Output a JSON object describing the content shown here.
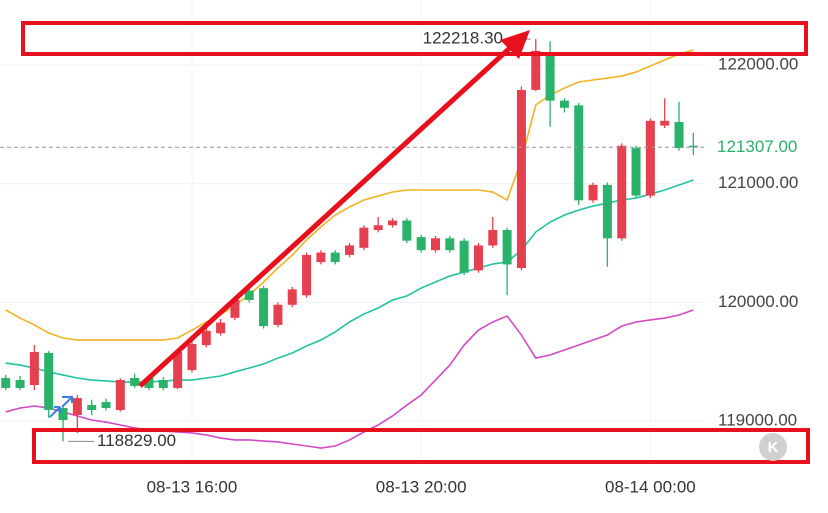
{
  "chart_data": {
    "type": "candlestick",
    "x": [
      -13,
      -12,
      -11,
      -10,
      -9,
      -8,
      -7,
      -6,
      -5,
      -4,
      -3,
      -2,
      -1,
      0,
      1,
      2,
      3,
      4,
      5,
      6,
      7,
      8,
      9,
      10,
      11,
      12,
      13,
      14,
      15,
      16,
      17,
      18,
      19,
      20,
      21,
      22,
      23,
      24,
      25,
      26,
      27,
      28,
      29,
      30,
      31,
      32,
      33,
      34,
      35
    ],
    "open": [
      119363,
      119346,
      119304,
      119574,
      119110,
      119051,
      119135,
      119160,
      119093,
      119363,
      119363,
      119346,
      119279,
      119430,
      119640,
      119740,
      119870,
      120100,
      120120,
      119810,
      119980,
      120060,
      120340,
      120420,
      120400,
      120460,
      120610,
      120650,
      120690,
      120550,
      120440,
      120540,
      120520,
      120270,
      120480,
      120610,
      120290,
      121790,
      122080,
      121700,
      121660,
      120860,
      120990,
      120540,
      121300,
      120900,
      121490,
      121520,
      121320
    ],
    "high": [
      119390,
      119380,
      119641,
      119590,
      119130,
      119220,
      119180,
      119190,
      119360,
      119400,
      119380,
      119370,
      119600,
      119700,
      119800,
      119860,
      120050,
      120130,
      120140,
      120000,
      120130,
      120420,
      120440,
      120440,
      120500,
      120650,
      120720,
      120710,
      120710,
      120570,
      120560,
      120560,
      120540,
      120500,
      120720,
      120630,
      121820,
      122218.3,
      122200,
      121720,
      121680,
      121010,
      121010,
      121340,
      121320,
      121550,
      121720,
      121690,
      121430
    ],
    "low": [
      119260,
      119260,
      119262,
      119026,
      118829,
      118900,
      119050,
      119090,
      119080,
      119280,
      119260,
      119260,
      119270,
      119410,
      119620,
      119720,
      119850,
      120000,
      119780,
      119790,
      119960,
      120040,
      120320,
      120320,
      120380,
      120440,
      120590,
      120630,
      120500,
      120420,
      120420,
      120420,
      120230,
      120250,
      120460,
      120060,
      120270,
      121780,
      121480,
      121600,
      120820,
      120840,
      120300,
      120520,
      120880,
      120880,
      121470,
      121280,
      121240
    ],
    "close": [
      119279,
      119279,
      119582,
      119094,
      119009,
      119194,
      119093,
      119110,
      119346,
      119296,
      119279,
      119279,
      119582,
      119650,
      119760,
      119830,
      120020,
      120020,
      119800,
      119980,
      120110,
      120400,
      120420,
      120340,
      120480,
      120630,
      120650,
      120690,
      120520,
      120440,
      120540,
      120440,
      120250,
      120480,
      120610,
      120320,
      121790,
      122120,
      121700,
      121640,
      120860,
      120990,
      120540,
      121320,
      120900,
      121530,
      121530,
      121300,
      121307
    ],
    "up_color": "#e5404f",
    "down_color": "#2bb26a",
    "series": [
      {
        "color": "#f0b323",
        "values": [
          119936,
          119868,
          119810,
          119742,
          119700,
          119683,
          119683,
          119683,
          119683,
          119683,
          119683,
          119683,
          119700,
          119767,
          119835,
          119894,
          119978,
          120062,
          120172,
          120290,
          120399,
          120526,
          120635,
          120736,
          120804,
          120863,
          120896,
          120930,
          120947,
          120947,
          120947,
          120947,
          120947,
          120947,
          120930,
          120863,
          121200,
          121663,
          121747,
          121806,
          121857,
          121874,
          121890,
          121907,
          121941,
          121992,
          122042,
          122093,
          122126
        ]
      },
      {
        "color": "#22c3a0",
        "values": [
          119489,
          119472,
          119447,
          119414,
          119388,
          119363,
          119346,
          119338,
          119329,
          119329,
          119329,
          119338,
          119346,
          119346,
          119363,
          119380,
          119414,
          119447,
          119481,
          119531,
          119574,
          119633,
          119683,
          119751,
          119835,
          119902,
          119953,
          120020,
          120054,
          120121,
          120172,
          120222,
          120256,
          120290,
          120323,
          120340,
          120441,
          120593,
          120677,
          120736,
          120778,
          120812,
          120837,
          120863,
          120879,
          120913,
          120947,
          120989,
          121031
        ]
      },
      {
        "color": "#d34ac4",
        "values": [
          119077,
          119110,
          119127,
          119110,
          119077,
          119043,
          119009,
          118992,
          118967,
          118942,
          118925,
          118916,
          118908,
          118900,
          118883,
          118857,
          118841,
          118841,
          118832,
          118824,
          118807,
          118790,
          118773,
          118790,
          118841,
          118908,
          118967,
          119043,
          119135,
          119220,
          119346,
          119472,
          119641,
          119767,
          119835,
          119885,
          119725,
          119531,
          119557,
          119599,
          119641,
          119683,
          119725,
          119801,
          119835,
          119852,
          119868,
          119894,
          119936
        ]
      }
    ],
    "xlim": [
      -13.4,
      44.4
    ],
    "xticks": [
      {
        "value": 0,
        "label": "08-13 16:00"
      },
      {
        "value": 16,
        "label": "08-13 20:00"
      },
      {
        "value": 32,
        "label": "08-14 00:00"
      }
    ],
    "ylim": [
      118630,
      122548
    ],
    "yticks": [
      {
        "value": 119000,
        "label": "119000.00"
      },
      {
        "value": 120000,
        "label": "120000.00"
      },
      {
        "value": 121000,
        "label": "121000.00"
      },
      {
        "value": 122000,
        "label": "122000.00"
      }
    ],
    "grid": true,
    "max_marker": {
      "value": 122218.3,
      "label": "122218.30"
    },
    "min_marker": {
      "value": 118829,
      "label": "118829.00"
    },
    "last_price": {
      "value": 121307,
      "label": "121307.00"
    },
    "badge": "K"
  }
}
